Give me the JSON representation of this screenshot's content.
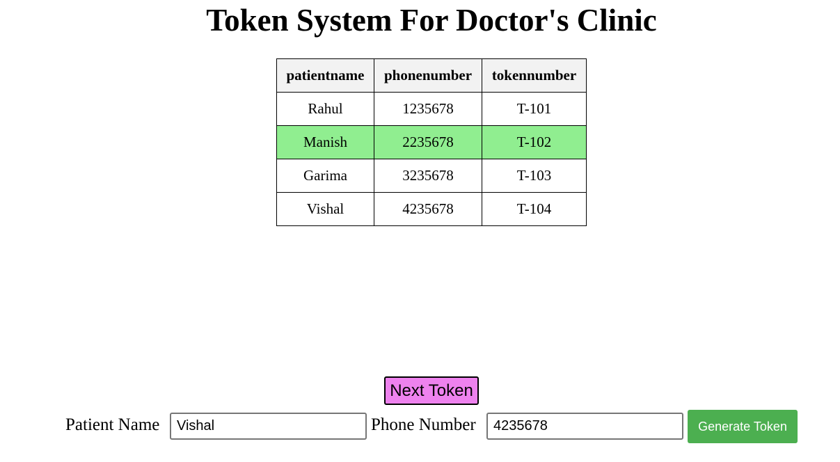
{
  "page": {
    "title": "Token System For Doctor's Clinic"
  },
  "table": {
    "headers": [
      "patientname",
      "phonenumber",
      "tokennumber"
    ],
    "rows": [
      {
        "patientname": "Rahul",
        "phonenumber": "1235678",
        "tokennumber": "T-101",
        "current": false
      },
      {
        "patientname": "Manish",
        "phonenumber": "2235678",
        "tokennumber": "T-102",
        "current": true
      },
      {
        "patientname": "Garima",
        "phonenumber": "3235678",
        "tokennumber": "T-103",
        "current": false
      },
      {
        "patientname": "Vishal",
        "phonenumber": "4235678",
        "tokennumber": "T-104",
        "current": false
      }
    ],
    "highlight_color": "#90ee90"
  },
  "controls": {
    "next_token_label": "Next Token",
    "next_token_color": "#ee82ee",
    "patient_name_label": "Patient Name",
    "patient_name_value": "Vishal",
    "phone_number_label": "Phone Number",
    "phone_number_value": "4235678",
    "generate_token_label": "Generate Token",
    "generate_token_color": "#4caf50"
  }
}
